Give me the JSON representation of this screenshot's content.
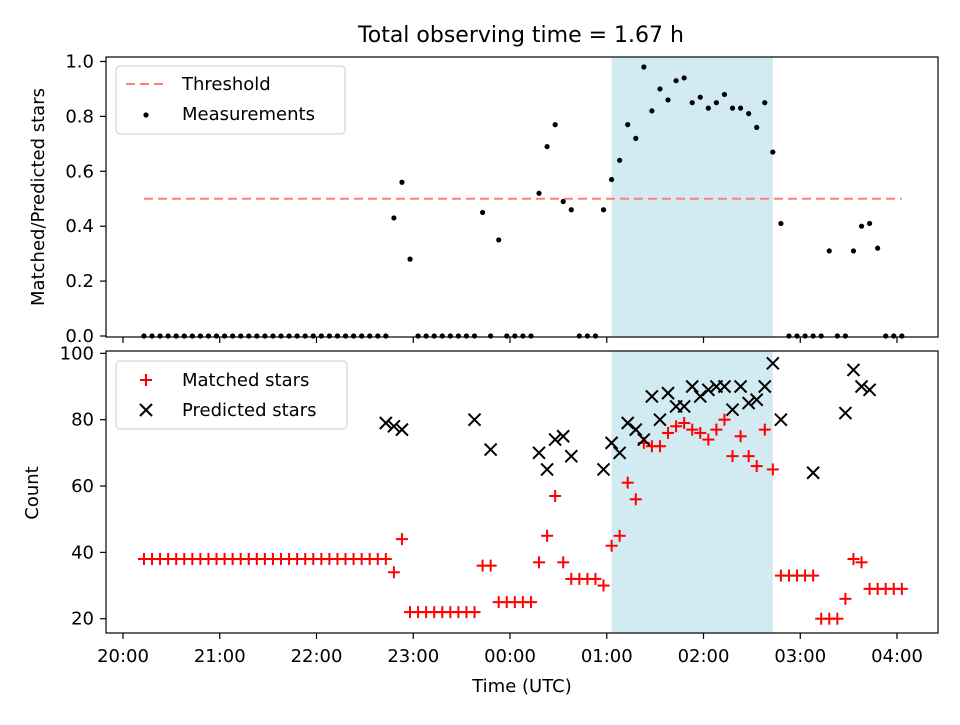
{
  "chart_data": [
    {
      "type": "scatter",
      "title": "Total observing time = 1.67 h",
      "ylabel": "Matched/Predicted stars",
      "ylim": [
        0,
        1.02
      ],
      "yticks": [
        "0.0",
        "0.2",
        "0.4",
        "0.6",
        "0.8",
        "1.0"
      ],
      "shaded_span": {
        "start": "01:03",
        "end": "02:43",
        "color": "#add8e6"
      },
      "threshold": {
        "name": "Threshold",
        "value": 0.5,
        "x_start": "20:13",
        "x_end": "04:03",
        "color": "#ff7f7f"
      },
      "legend": {
        "placement": "top-left",
        "entries": [
          "Threshold",
          "Measurements"
        ]
      },
      "series": [
        {
          "name": "Measurements",
          "color": "#000000",
          "x": [
            "20:13",
            "20:18",
            "20:23",
            "20:28",
            "20:33",
            "20:38",
            "20:43",
            "20:48",
            "20:53",
            "20:58",
            "21:03",
            "21:08",
            "21:13",
            "21:18",
            "21:23",
            "21:28",
            "21:33",
            "21:38",
            "21:43",
            "21:48",
            "21:53",
            "21:58",
            "22:03",
            "22:08",
            "22:13",
            "22:18",
            "22:23",
            "22:28",
            "22:33",
            "22:38",
            "22:43",
            "22:48",
            "22:53",
            "22:58",
            "23:03",
            "23:08",
            "23:13",
            "23:18",
            "23:23",
            "23:28",
            "23:33",
            "23:38",
            "23:43",
            "23:48",
            "23:53",
            "23:58",
            "00:03",
            "00:08",
            "00:13",
            "00:18",
            "00:23",
            "00:28",
            "00:33",
            "00:38",
            "00:43",
            "00:48",
            "00:53",
            "00:58",
            "01:03",
            "01:08",
            "01:13",
            "01:18",
            "01:23",
            "01:28",
            "01:33",
            "01:38",
            "01:43",
            "01:48",
            "01:53",
            "01:58",
            "02:03",
            "02:08",
            "02:13",
            "02:18",
            "02:23",
            "02:28",
            "02:33",
            "02:38",
            "02:43",
            "02:48",
            "02:53",
            "02:58",
            "03:03",
            "03:08",
            "03:13",
            "03:18",
            "03:23",
            "03:28",
            "03:33",
            "03:38",
            "03:43",
            "03:48",
            "03:53",
            "03:58",
            "04:03"
          ],
          "y": [
            0,
            0,
            0,
            0,
            0,
            0,
            0,
            0,
            0,
            0,
            0,
            0,
            0,
            0,
            0,
            0,
            0,
            0,
            0,
            0,
            0,
            0,
            0,
            0,
            0,
            0,
            0,
            0,
            0,
            0,
            0,
            0.43,
            0.56,
            0.28,
            0,
            0,
            0,
            0,
            0,
            0,
            0,
            0,
            0.45,
            0,
            0.35,
            0,
            0,
            0,
            0,
            0.52,
            0.69,
            0.77,
            0.49,
            0.46,
            0,
            0,
            0,
            0.46,
            0.57,
            0.64,
            0.77,
            0.72,
            0.98,
            0.82,
            0.9,
            0.86,
            0.93,
            0.94,
            0.85,
            0.87,
            0.83,
            0.85,
            0.88,
            0.83,
            0.83,
            0.81,
            0.76,
            0.85,
            0.67,
            0.41,
            0,
            0,
            0,
            0,
            0,
            0.31,
            0,
            0,
            0.31,
            0.4,
            0.41,
            0.32,
            0,
            0,
            0
          ]
        }
      ]
    },
    {
      "type": "scatter",
      "xlabel": "Time (UTC)",
      "ylabel": "Count",
      "ylim": [
        16,
        101
      ],
      "yticks": [
        "20",
        "40",
        "60",
        "80",
        "100"
      ],
      "xticks": [
        "20:00",
        "21:00",
        "22:00",
        "23:00",
        "00:00",
        "01:00",
        "02:00",
        "03:00",
        "04:00"
      ],
      "shaded_span": {
        "start": "01:03",
        "end": "02:43",
        "color": "#add8e6"
      },
      "legend": {
        "placement": "top-left",
        "entries": [
          "Matched stars",
          "Predicted stars"
        ]
      },
      "series": [
        {
          "name": "Matched stars",
          "marker": "plus",
          "color": "#ff0000",
          "x": [
            "20:13",
            "20:18",
            "20:23",
            "20:28",
            "20:33",
            "20:38",
            "20:43",
            "20:48",
            "20:53",
            "20:58",
            "21:03",
            "21:08",
            "21:13",
            "21:18",
            "21:23",
            "21:28",
            "21:33",
            "21:38",
            "21:43",
            "21:48",
            "21:53",
            "21:58",
            "22:03",
            "22:08",
            "22:13",
            "22:18",
            "22:23",
            "22:28",
            "22:33",
            "22:38",
            "22:43",
            "22:48",
            "22:53",
            "22:58",
            "23:03",
            "23:08",
            "23:13",
            "23:18",
            "23:23",
            "23:28",
            "23:33",
            "23:38",
            "23:43",
            "23:48",
            "23:53",
            "23:58",
            "00:03",
            "00:08",
            "00:13",
            "00:18",
            "00:23",
            "00:28",
            "00:33",
            "00:38",
            "00:43",
            "00:48",
            "00:53",
            "00:58",
            "01:03",
            "01:08",
            "01:13",
            "01:18",
            "01:23",
            "01:28",
            "01:33",
            "01:38",
            "01:43",
            "01:48",
            "01:53",
            "01:58",
            "02:03",
            "02:08",
            "02:13",
            "02:18",
            "02:23",
            "02:28",
            "02:33",
            "02:38",
            "02:43",
            "02:48",
            "02:53",
            "02:58",
            "03:03",
            "03:08",
            "03:13",
            "03:18",
            "03:23",
            "03:28",
            "03:33",
            "03:38",
            "03:43",
            "03:48",
            "03:53",
            "03:58",
            "04:03"
          ],
          "y": [
            38,
            38,
            38,
            38,
            38,
            38,
            38,
            38,
            38,
            38,
            38,
            38,
            38,
            38,
            38,
            38,
            38,
            38,
            38,
            38,
            38,
            38,
            38,
            38,
            38,
            38,
            38,
            38,
            38,
            38,
            38,
            34,
            44,
            22,
            22,
            22,
            22,
            22,
            22,
            22,
            22,
            22,
            36,
            36,
            25,
            25,
            25,
            25,
            25,
            37,
            45,
            57,
            37,
            32,
            32,
            32,
            32,
            30,
            42,
            45,
            61,
            56,
            73,
            72,
            72,
            76,
            78,
            79,
            77,
            76,
            74,
            77,
            80,
            69,
            75,
            69,
            66,
            77,
            65,
            33,
            33,
            33,
            33,
            33,
            20,
            20,
            20,
            26,
            38,
            37,
            29,
            29,
            29,
            29,
            29
          ]
        },
        {
          "name": "Predicted stars",
          "marker": "x",
          "color": "#000000",
          "x": [
            "22:43",
            "22:48",
            "22:53",
            "23:38",
            "23:48",
            "00:18",
            "00:23",
            "00:28",
            "00:33",
            "00:38",
            "00:58",
            "01:03",
            "01:08",
            "01:13",
            "01:18",
            "01:23",
            "01:28",
            "01:33",
            "01:38",
            "01:43",
            "01:48",
            "01:53",
            "01:58",
            "02:03",
            "02:08",
            "02:13",
            "02:18",
            "02:23",
            "02:28",
            "02:33",
            "02:38",
            "02:43",
            "02:48",
            "03:08",
            "03:28",
            "03:33",
            "03:38",
            "03:43"
          ],
          "y": [
            79,
            78,
            77,
            80,
            71,
            70,
            65,
            74,
            75,
            69,
            65,
            73,
            70,
            79,
            77,
            74,
            87,
            80,
            88,
            84,
            84,
            90,
            87,
            89,
            90,
            90,
            83,
            90,
            85,
            86,
            90,
            97,
            80,
            64,
            82,
            95,
            90,
            89
          ]
        }
      ]
    }
  ]
}
